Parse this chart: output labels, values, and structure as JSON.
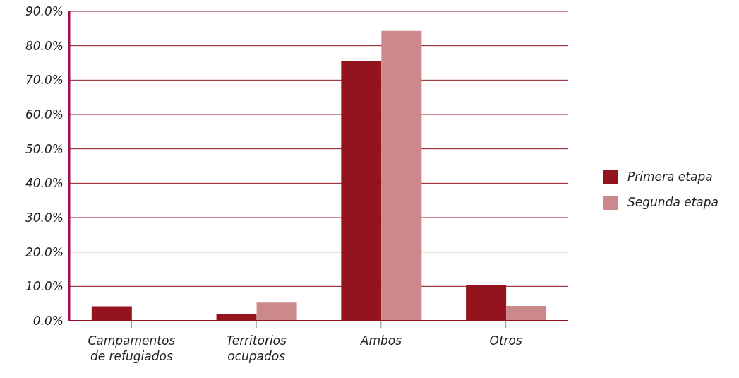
{
  "chart_data": {
    "type": "bar",
    "categories": [
      "Campamentos\nde refugiados",
      "Territorios\nocupados",
      "Ambos",
      "Otros"
    ],
    "series": [
      {
        "name": "Primera etapa",
        "color": "#94141e",
        "values": [
          4.2,
          2.0,
          75.4,
          10.3
        ]
      },
      {
        "name": "Segunda etapa",
        "color": "#cb898c",
        "values": [
          0,
          5.3,
          84.3,
          4.3
        ]
      }
    ],
    "ylim": [
      0,
      90
    ],
    "yticks": [
      {
        "value": 0,
        "label": "0.0%"
      },
      {
        "value": 10,
        "label": "10.0%"
      },
      {
        "value": 20,
        "label": "20.0%"
      },
      {
        "value": 30,
        "label": "30.0%"
      },
      {
        "value": 40,
        "label": "40.0%"
      },
      {
        "value": 50,
        "label": "50.0%"
      },
      {
        "value": 60,
        "label": "60.0%"
      },
      {
        "value": 70,
        "label": "70.0%"
      },
      {
        "value": 80,
        "label": "80.0%"
      },
      {
        "value": 90,
        "label": "90.0%"
      }
    ],
    "grid": "y",
    "legend": "right"
  }
}
